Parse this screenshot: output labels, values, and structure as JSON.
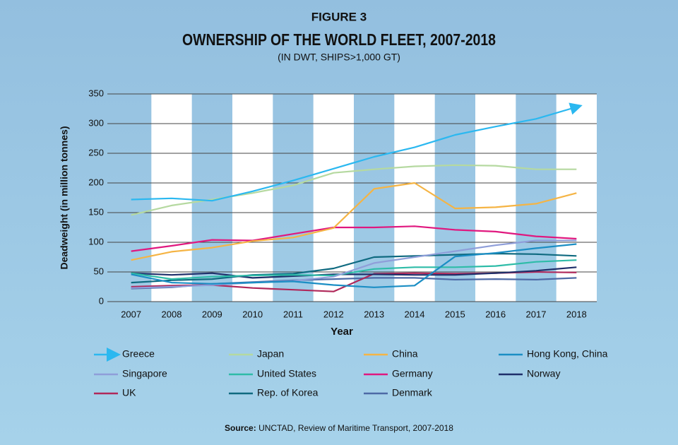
{
  "chart_data": {
    "type": "line",
    "figure_label": "FIGURE 3",
    "title": "OWNERSHIP OF THE WORLD FLEET, 2007-2018",
    "subtitle": "(IN DWT, SHIPS>1,000 GT)",
    "ylabel": "Deadweight (in million tonnes)",
    "xlabel": "Year",
    "source_label": "Source:",
    "source": "UNCTAD, Review of Maritime Transport, 2007-2018",
    "categories": [
      "2007",
      "2008",
      "2009",
      "2010",
      "2011",
      "2012",
      "2013",
      "2014",
      "2015",
      "2016",
      "2017",
      "2018"
    ],
    "ylim": [
      0,
      350
    ],
    "yticks": [
      0,
      50,
      100,
      150,
      200,
      250,
      300,
      350
    ],
    "grid": true,
    "series": [
      {
        "name": "Greece",
        "color": "#2bb8f0",
        "values": [
          172,
          174,
          170,
          186,
          204,
          224,
          244,
          260,
          281,
          295,
          308,
          328
        ]
      },
      {
        "name": "Japan",
        "color": "#b5d9a0",
        "values": [
          146,
          162,
          172,
          183,
          196,
          217,
          223,
          228,
          230,
          229,
          223,
          223
        ]
      },
      {
        "name": "China",
        "color": "#f5b444",
        "values": [
          70,
          84,
          91,
          102,
          108,
          124,
          190,
          200,
          157,
          159,
          165,
          183
        ]
      },
      {
        "name": "Hong Kong, China",
        "color": "#1b8ec4",
        "values": [
          46,
          32,
          30,
          32,
          34,
          28,
          24,
          27,
          76,
          82,
          90,
          97
        ]
      },
      {
        "name": "Singapore",
        "color": "#8f9ed9",
        "values": [
          23,
          25,
          28,
          32,
          35,
          42,
          65,
          75,
          85,
          95,
          103,
          103
        ]
      },
      {
        "name": "United States",
        "color": "#2ebca8",
        "values": [
          48,
          38,
          42,
          44,
          45,
          44,
          55,
          58,
          58,
          60,
          67,
          70
        ]
      },
      {
        "name": "Germany",
        "color": "#e0187f",
        "values": [
          85,
          94,
          104,
          103,
          114,
          125,
          125,
          127,
          121,
          118,
          110,
          106
        ]
      },
      {
        "name": "Norway",
        "color": "#1e2f6a",
        "values": [
          48,
          45,
          48,
          40,
          43,
          46,
          46,
          45,
          45,
          48,
          52,
          58
        ]
      },
      {
        "name": "UK",
        "color": "#b0285a",
        "values": [
          25,
          27,
          28,
          23,
          20,
          17,
          47,
          48,
          47,
          48,
          50,
          49
        ]
      },
      {
        "name": "Rep. of Korea",
        "color": "#0f6a80",
        "values": [
          32,
          36,
          38,
          45,
          47,
          56,
          75,
          77,
          79,
          81,
          80,
          77
        ]
      },
      {
        "name": "Denmark",
        "color": "#4d6aa6",
        "values": [
          22,
          24,
          30,
          33,
          36,
          38,
          40,
          40,
          37,
          38,
          37,
          40
        ]
      }
    ]
  }
}
